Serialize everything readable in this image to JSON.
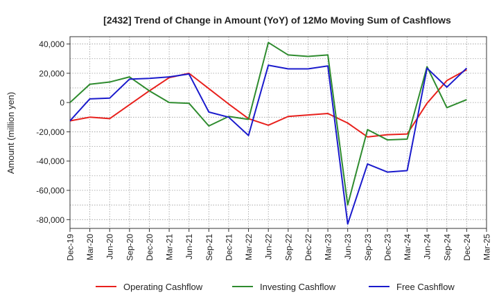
{
  "chart_data": {
    "type": "line",
    "title": "[2432]  Trend of Change in Amount (YoY) of 12Mo Moving Sum of Cashflows",
    "xlabel": "",
    "ylabel": "Amount (million yen)",
    "ylim": [
      -86000,
      45000
    ],
    "yticks": [
      40000,
      20000,
      0,
      -20000,
      -40000,
      -60000,
      -80000
    ],
    "ytick_labels": [
      "40,000",
      "20,000",
      "0",
      "-20,000",
      "-40,000",
      "-60,000",
      "-80,000"
    ],
    "categories": [
      "Dec-19",
      "Mar-20",
      "Jun-20",
      "Sep-20",
      "Dec-20",
      "Mar-21",
      "Jun-21",
      "Sep-21",
      "Dec-21",
      "Mar-22",
      "Jun-22",
      "Sep-22",
      "Dec-22",
      "Mar-23",
      "Jun-23",
      "Sep-23",
      "Dec-23",
      "Mar-24",
      "Jun-24",
      "Sep-24",
      "Dec-24",
      "Mar-25"
    ],
    "grid": true,
    "legend_position": "bottom",
    "series": [
      {
        "name": "Operating Cashflow",
        "color": "#e8201c",
        "values": [
          -12500,
          -10000,
          -11000,
          -1500,
          8000,
          17000,
          20000,
          9500,
          -1000,
          -11000,
          -15500,
          -9500,
          -8500,
          -7500,
          -14000,
          -23500,
          -22000,
          -21500,
          -500,
          15000,
          22500,
          null
        ]
      },
      {
        "name": "Investing Cashflow",
        "color": "#2e8b2e",
        "values": [
          0,
          12500,
          14000,
          17500,
          8000,
          0,
          -500,
          -16000,
          -9500,
          -11500,
          41000,
          32500,
          31500,
          32500,
          -70000,
          -18500,
          -25500,
          -25000,
          24500,
          -3500,
          2000,
          null
        ]
      },
      {
        "name": "Free Cashflow",
        "color": "#1a1acc",
        "values": [
          -12500,
          2500,
          3000,
          16000,
          16500,
          17500,
          19500,
          -6500,
          -10000,
          -22500,
          25500,
          23000,
          23000,
          25000,
          -83000,
          -42000,
          -47500,
          -46500,
          23500,
          10500,
          23500,
          null
        ]
      }
    ]
  }
}
